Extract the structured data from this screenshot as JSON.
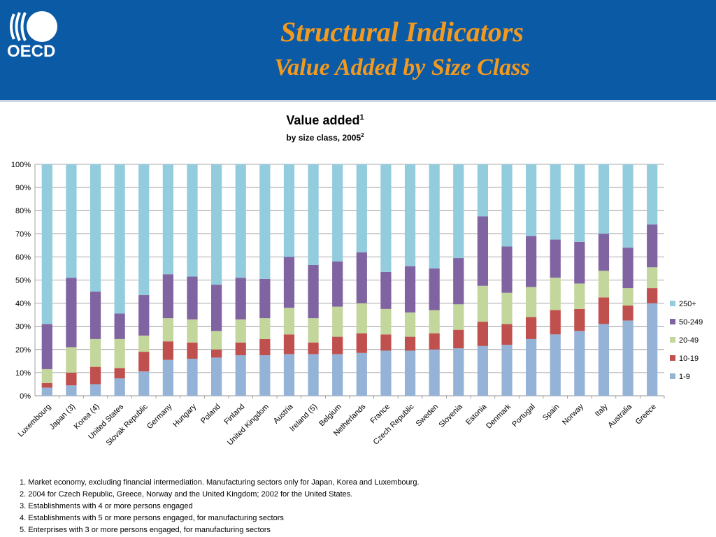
{
  "header": {
    "logo_text": "OECD",
    "title": "Structural Indicators",
    "subtitle": "Value Added by Size Class",
    "bg_color": "#0b5aa6",
    "title_color": "#f39a1e"
  },
  "chart_data": {
    "type": "bar",
    "stacked": true,
    "title": "Value added",
    "title_superscript": "1",
    "subtitle": "by size class, 2005",
    "subtitle_superscript": "2",
    "ylim": [
      0,
      100
    ],
    "yticks": [
      "0%",
      "10%",
      "20%",
      "30%",
      "40%",
      "50%",
      "60%",
      "70%",
      "80%",
      "90%",
      "100%"
    ],
    "legend_position": "right",
    "categories": [
      "Luxembourg",
      "Japan (3)",
      "Korea (4)",
      "United States",
      "Slovak Republic",
      "Germany",
      "Hungary",
      "Poland",
      "Finland",
      "United Kingdom",
      "Austria",
      "Ireland (5)",
      "Belgium",
      "Netherlands",
      "France",
      "Czech Republic",
      "Sweden",
      "Slovenia",
      "Estonia",
      "Denmark",
      "Portugal",
      "Spain",
      "Norway",
      "Italy",
      "Australia",
      "Greece"
    ],
    "series": [
      {
        "name": "1-9",
        "color": "#95b3d7",
        "values": [
          3.5,
          4.5,
          5,
          7.5,
          10.5,
          15.5,
          16,
          16.5,
          17.5,
          17.5,
          18,
          18,
          18,
          18.5,
          19.5,
          19.5,
          20,
          20.5,
          21.5,
          22,
          24.5,
          26.5,
          28,
          31,
          32.5,
          40
        ]
      },
      {
        "name": "10-19",
        "color": "#c0504d",
        "values": [
          2,
          5.5,
          7.5,
          4.5,
          8.5,
          8,
          7,
          3.5,
          5.5,
          7,
          8.5,
          5,
          7.5,
          8.5,
          7,
          6,
          7,
          8,
          10.5,
          9,
          9.5,
          10.5,
          9.5,
          11.5,
          6.5,
          6.5
        ]
      },
      {
        "name": "20-49",
        "color": "#c3d69b",
        "values": [
          6,
          11,
          12,
          12.5,
          7,
          10,
          10,
          8,
          10,
          9,
          11.5,
          10.5,
          13,
          13,
          11,
          10.5,
          10,
          11,
          15.5,
          13.5,
          13,
          14,
          11,
          11.5,
          7.5,
          9
        ]
      },
      {
        "name": "50-249",
        "color": "#8064a2",
        "values": [
          19.5,
          30,
          20.5,
          11,
          17.5,
          19,
          18.5,
          20,
          18,
          17,
          22,
          23,
          19.5,
          22,
          16,
          20,
          18,
          20,
          30,
          20,
          22,
          16.5,
          18,
          16,
          17.5,
          18.5
        ]
      },
      {
        "name": "250+",
        "color": "#93cddd",
        "values": [
          69,
          49,
          55,
          64.5,
          56.5,
          47.5,
          48.5,
          52,
          49,
          49.5,
          40,
          43.5,
          42,
          38,
          46.5,
          44,
          45,
          40.5,
          22.5,
          35.5,
          31,
          32.5,
          33.5,
          30,
          36,
          26
        ]
      }
    ]
  },
  "notes": [
    "1.  Market economy, excluding financial intermediation. Manufacturing sectors only for Japan, Korea and Luxembourg.",
    "2.  2004  for Czech Republic, Greece, Norway and the United Kingdom;  2002 for the United States.",
    "3.  Establishments with 4 or more persons engaged",
    "4.  Establishments with 5 or more persons engaged, for manufacturing sectors",
    "5.  Enterprises with 3 or more persons engaged, for manufacturing sectors"
  ]
}
